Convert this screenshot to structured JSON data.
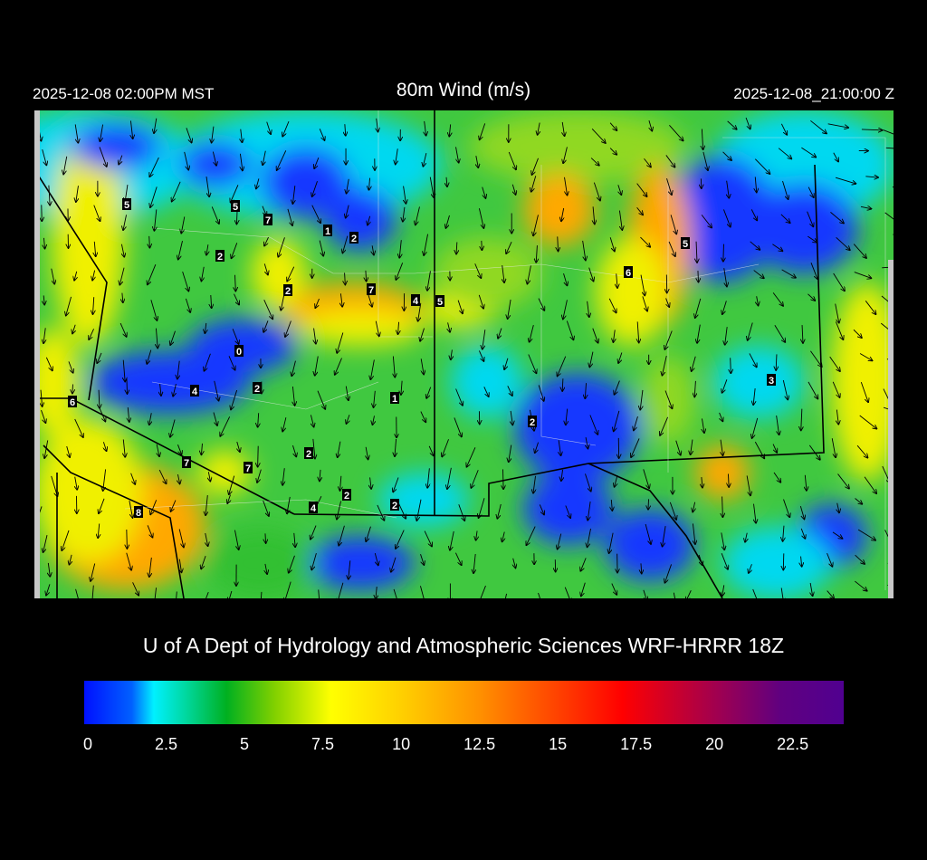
{
  "header": {
    "title": "80m Wind (m/s)",
    "local_time": "2025-12-08 02:00PM MST",
    "utc_time": "2025-12-08_21:00:00 Z"
  },
  "credit": "U of A Dept of Hydrology and Atmospheric Sciences WRF-HRRR 18Z",
  "colorbar": {
    "units": "m/s",
    "range": [
      0,
      24
    ],
    "tick_labels": [
      "0",
      "2.5",
      "5",
      "7.5",
      "10",
      "12.5",
      "15",
      "17.5",
      "20",
      "22.5"
    ],
    "colors": [
      "#0010ff",
      "#00f0ff",
      "#00b020",
      "#ffff00",
      "#ffb000",
      "#ff0000",
      "#500090"
    ]
  },
  "map": {
    "field": "80m wind speed",
    "station_values": [
      "5",
      "5",
      "7",
      "1",
      "2",
      "2",
      "2",
      "7",
      "4",
      "5",
      "6",
      "5",
      "0",
      "4",
      "2",
      "1",
      "3",
      "6",
      "2",
      "2",
      "7",
      "7",
      "2",
      "4",
      "2",
      "8"
    ]
  }
}
